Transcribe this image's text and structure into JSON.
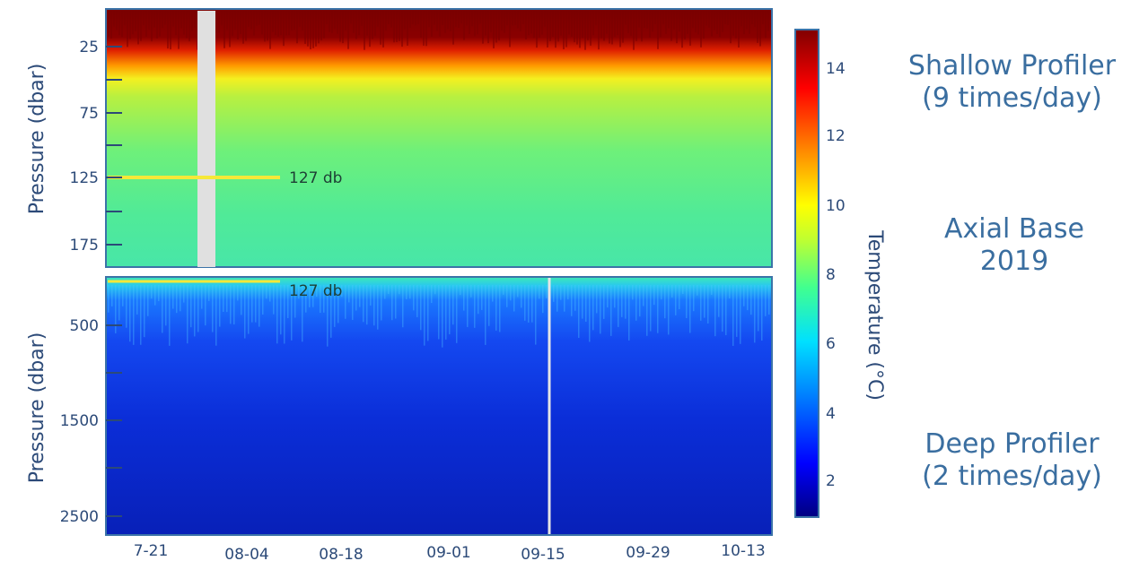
{
  "chart_data": [
    {
      "type": "heatmap",
      "name": "shallow",
      "ylabel": "Pressure (dbar)",
      "yticks": [
        25,
        75,
        125,
        175
      ],
      "ylim": [
        200,
        0
      ],
      "annotation": {
        "text": "127 db",
        "y": 127
      },
      "gap": {
        "from": "07-28",
        "to": "07-29"
      }
    },
    {
      "type": "heatmap",
      "name": "deep",
      "ylabel": "Pressure (dbar)",
      "yticks": [
        500,
        1500,
        2500
      ],
      "ylim": [
        2700,
        127
      ],
      "annotation": {
        "text": "127 db",
        "y": 127
      },
      "gap": {
        "from": "09-15",
        "to": "09-15"
      }
    }
  ],
  "x_axis": {
    "ticks": [
      "7-21",
      "08-04",
      "08-18",
      "09-01",
      "09-15",
      "09-29",
      "10-13"
    ]
  },
  "colorbar": {
    "label": "Temperature (°C)",
    "ticks": [
      2,
      4,
      6,
      8,
      10,
      12,
      14
    ],
    "range": [
      1,
      15
    ],
    "stops": [
      "#000080",
      "#0000ff",
      "#0080ff",
      "#00e0ff",
      "#40ff90",
      "#c0ff30",
      "#ffff00",
      "#ff8000",
      "#ff0000",
      "#800000"
    ]
  },
  "side_labels": {
    "shallow_title": "Shallow Profiler",
    "shallow_freq": "(9 times/day)",
    "site_name": "Axial Base",
    "site_year": "2019",
    "deep_title": "Deep Profiler",
    "deep_freq": "(2 times/day)"
  }
}
